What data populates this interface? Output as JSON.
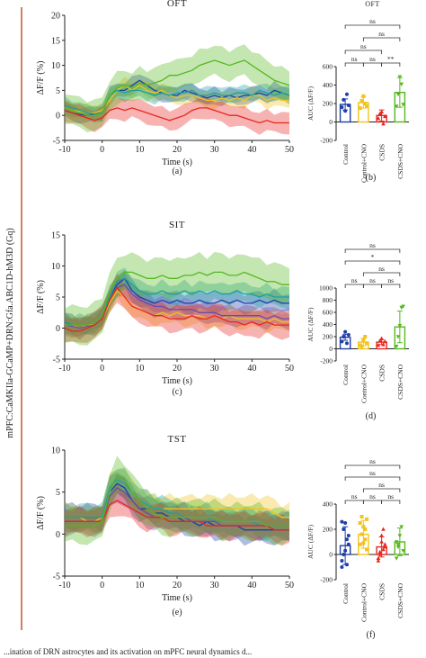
{
  "figure": {
    "side_label": "mPFC:CaMKIIa-GCaMP+DRN:Gfa.ABC1D-hM3D (Gq)",
    "caption_fragment": "...ination of DRN astrocytes and its activation on mPFC neural dynamics d..."
  },
  "colors": {
    "control": "#1f3fa8",
    "control_cno": "#f2c31b",
    "csds": "#e8261f",
    "csds_cno": "#56b81f",
    "teal": "#1aa0a0",
    "purple": "#6a4caf"
  },
  "chart_data": [
    {
      "id": "a",
      "letter": "(a)",
      "type": "line",
      "title": "OFT",
      "xlabel": "Time (s)",
      "ylabel": "ΔF/F (%)",
      "xlim": [
        -10,
        50
      ],
      "ylim": [
        -5,
        20
      ],
      "xticks": [
        -10,
        0,
        10,
        20,
        30,
        40,
        50
      ],
      "yticks": [
        -5,
        0,
        5,
        10,
        15,
        20
      ],
      "x": [
        -10,
        -8,
        -6,
        -4,
        -2,
        0,
        2,
        4,
        6,
        8,
        10,
        12,
        14,
        16,
        18,
        20,
        22,
        24,
        26,
        28,
        30,
        32,
        34,
        36,
        38,
        40,
        42,
        44,
        46,
        48,
        50
      ],
      "series": [
        {
          "key": "control",
          "values": [
            1,
            0.5,
            0.2,
            0,
            0.3,
            0.5,
            4,
            5,
            5,
            6,
            7,
            6,
            5,
            4.5,
            4,
            4,
            5,
            4.5,
            4,
            3.5,
            4,
            3.5,
            4,
            3.5,
            4,
            4,
            4.5,
            4,
            5,
            4.5,
            4
          ],
          "err": 1.5
        },
        {
          "key": "control_cno",
          "values": [
            1.5,
            1,
            0.8,
            0.5,
            0.5,
            1,
            3,
            5,
            6,
            5,
            6,
            5,
            4.5,
            5,
            4,
            3.5,
            4,
            4,
            3.5,
            3,
            3,
            3.5,
            3,
            3.5,
            3,
            4,
            4,
            3,
            3.5,
            3,
            3
          ],
          "err": 1.5
        },
        {
          "key": "teal",
          "values": [
            2,
            1.5,
            1,
            0.5,
            0.3,
            0.5,
            4,
            5,
            4.5,
            5,
            5,
            4.5,
            4,
            4.5,
            4,
            4.5,
            4.5,
            5,
            4,
            4,
            4.5,
            4,
            4,
            4.5,
            4.5,
            4,
            5,
            4.5,
            4,
            4.5,
            4
          ],
          "err": 1.5
        },
        {
          "key": "csds",
          "values": [
            1,
            0.5,
            0,
            -0.5,
            -1,
            -0.5,
            1,
            1.5,
            1,
            1.5,
            1,
            0.5,
            0,
            -0.5,
            -1,
            -0.5,
            0,
            1,
            1.5,
            1.5,
            1,
            0.5,
            0,
            0,
            -0.5,
            -1,
            -1.5,
            -1,
            -1.5,
            -1.5,
            -1.5
          ],
          "err": 2
        },
        {
          "key": "csds_cno",
          "values": [
            1.5,
            1,
            0.5,
            0,
            0,
            0.5,
            4,
            5.5,
            6,
            5.5,
            6.5,
            6,
            6.5,
            7,
            8,
            8,
            8.5,
            9,
            10,
            10.5,
            11,
            10.5,
            10,
            10.5,
            11,
            10,
            9,
            8,
            7,
            6.5,
            6
          ],
          "err": 3
        }
      ]
    },
    {
      "id": "c",
      "letter": "(c)",
      "type": "line",
      "title": "SIT",
      "xlabel": "Time (s)",
      "ylabel": "ΔF/F (%)",
      "xlim": [
        -10,
        50
      ],
      "ylim": [
        -5,
        15
      ],
      "xticks": [
        -10,
        0,
        10,
        20,
        30,
        40,
        50
      ],
      "yticks": [
        -5,
        0,
        5,
        10,
        15
      ],
      "x": [
        -10,
        -8,
        -6,
        -4,
        -2,
        0,
        2,
        4,
        6,
        8,
        10,
        12,
        14,
        16,
        18,
        20,
        22,
        24,
        26,
        28,
        30,
        32,
        34,
        36,
        38,
        40,
        42,
        44,
        46,
        48,
        50
      ],
      "series": [
        {
          "key": "control",
          "values": [
            1,
            0.5,
            0,
            0.5,
            1,
            2,
            5,
            7,
            8,
            6,
            5,
            4.5,
            4,
            4.5,
            4,
            4.5,
            4,
            4,
            4.5,
            4,
            4,
            4.5,
            4,
            4.5,
            4,
            4,
            4.5,
            4,
            4.5,
            4,
            4
          ],
          "err": 1.5
        },
        {
          "key": "control_cno",
          "values": [
            0.5,
            0.5,
            0,
            0.5,
            0.5,
            1.5,
            4,
            6,
            5,
            3.5,
            3,
            2.5,
            2,
            2.5,
            2,
            2.5,
            2,
            2,
            2,
            1.5,
            2,
            1.5,
            2,
            1.5,
            1.5,
            1.5,
            1.5,
            1,
            1.5,
            1,
            1
          ],
          "err": 1.5
        },
        {
          "key": "purple",
          "values": [
            0.5,
            0.3,
            0,
            0.3,
            0.5,
            1.5,
            4.5,
            6.5,
            7,
            5.5,
            4.5,
            4,
            3.5,
            3.5,
            3,
            3,
            3,
            3,
            2.5,
            2.5,
            2.5,
            2,
            2,
            2,
            2,
            2,
            2,
            1.5,
            2,
            1.5,
            1.5
          ],
          "err": 1.5
        },
        {
          "key": "teal",
          "values": [
            1,
            0.5,
            0.5,
            0.5,
            1,
            2,
            5,
            7.5,
            8,
            7,
            6,
            5.5,
            5.5,
            6,
            5.5,
            5.5,
            6,
            5.5,
            6,
            5.5,
            6,
            5.5,
            5.5,
            6,
            5.5,
            5.5,
            5,
            5.5,
            5,
            5,
            5
          ],
          "err": 1.5
        },
        {
          "key": "csds",
          "values": [
            0,
            -0.5,
            -0.5,
            0,
            0.5,
            1.5,
            4.5,
            6.5,
            5,
            3.5,
            3,
            2.5,
            2,
            2,
            1.5,
            1.5,
            1.5,
            2,
            1.5,
            1.5,
            2,
            1.5,
            1,
            1,
            0.5,
            1,
            0.5,
            1,
            0.5,
            0.5,
            0.5
          ],
          "err": 2
        },
        {
          "key": "csds_cno",
          "values": [
            0.5,
            0.5,
            0.5,
            0.5,
            1,
            2,
            6,
            8,
            9,
            9,
            8.5,
            8,
            8,
            8.5,
            8,
            8,
            8.5,
            8.5,
            9,
            8.5,
            9,
            9,
            8.5,
            8.5,
            9,
            8.5,
            8,
            7.5,
            7.5,
            7,
            7
          ],
          "err": 3
        }
      ]
    },
    {
      "id": "e",
      "letter": "(e)",
      "type": "line",
      "title": "TST",
      "xlabel": "Time (s)",
      "ylabel": "ΔF/F (%)",
      "xlim": [
        -10,
        50
      ],
      "ylim": [
        -5,
        10
      ],
      "xticks": [
        -10,
        0,
        10,
        20,
        30,
        40,
        50
      ],
      "yticks": [
        -5,
        0,
        5,
        10
      ],
      "x": [
        -10,
        -8,
        -6,
        -4,
        -2,
        0,
        2,
        4,
        6,
        8,
        10,
        12,
        14,
        16,
        18,
        20,
        22,
        24,
        26,
        28,
        30,
        32,
        34,
        36,
        38,
        40,
        42,
        44,
        46,
        48,
        50
      ],
      "series": [
        {
          "key": "control",
          "values": [
            2,
            2,
            2,
            2,
            2,
            2,
            5,
            6,
            5.5,
            4,
            3,
            3,
            2.5,
            2.5,
            2,
            2,
            1.5,
            1.5,
            1,
            1.5,
            1,
            1,
            1,
            1,
            0.5,
            0.5,
            0.5,
            0.5,
            0.5,
            0.5,
            0.5
          ],
          "err": 1.5
        },
        {
          "key": "control_cno",
          "values": [
            2,
            2,
            2,
            1.5,
            1.5,
            2,
            5.5,
            6.5,
            6,
            5,
            4,
            3.5,
            3,
            3,
            3,
            3,
            3,
            3,
            3,
            3,
            3,
            3,
            3,
            3,
            3,
            3,
            3,
            3,
            2.5,
            2,
            2
          ],
          "err": 1.5
        },
        {
          "key": "teal",
          "values": [
            2,
            2,
            2,
            2,
            2,
            2,
            5.5,
            6.5,
            6,
            5,
            4,
            3.5,
            3,
            3,
            2.5,
            2.5,
            2,
            2,
            2,
            2,
            1.5,
            1.5,
            1.5,
            1.5,
            1.5,
            1.5,
            1,
            1,
            1,
            1,
            1
          ],
          "err": 1.5
        },
        {
          "key": "purple",
          "values": [
            1.5,
            1.5,
            1.5,
            1.5,
            1.5,
            1.5,
            4.5,
            5.5,
            5,
            4,
            3,
            2.5,
            2,
            2,
            2,
            2,
            2,
            1.5,
            1.5,
            1.5,
            1.5,
            1,
            1,
            1,
            1,
            1,
            1,
            1,
            1,
            1,
            1
          ],
          "err": 1.5
        },
        {
          "key": "csds",
          "values": [
            1.5,
            1.5,
            1.5,
            1.5,
            1.5,
            1.5,
            3.5,
            4,
            3.5,
            3,
            2.5,
            2,
            2,
            2,
            1.5,
            1.5,
            1.5,
            1.5,
            1.5,
            1,
            1,
            1,
            1,
            1,
            1,
            1,
            1,
            1,
            0.5,
            0.5,
            0.5
          ],
          "err": 1.5
        },
        {
          "key": "csds_cno",
          "values": [
            1,
            1,
            1,
            1,
            1,
            1.5,
            5,
            7,
            6.5,
            5,
            4,
            3,
            2.5,
            2,
            2,
            2,
            2,
            2,
            2,
            2,
            2,
            1.5,
            1.5,
            1.5,
            1.5,
            1.5,
            1.5,
            1,
            1,
            1,
            1
          ],
          "err": 2
        }
      ]
    },
    {
      "id": "b",
      "letter": "(b)",
      "type": "bar",
      "title": "OFT",
      "ylabel": "AUC (ΔF/F)",
      "ylim": [
        -200,
        600
      ],
      "yticks": [
        -200,
        0,
        200,
        400,
        600
      ],
      "categories": [
        "Control",
        "Control+CNO",
        "CSDS",
        "CSDS+CNO"
      ],
      "values": [
        190,
        210,
        70,
        320
      ],
      "errors": [
        60,
        60,
        60,
        160
      ],
      "points": [
        [
          160,
          240,
          120,
          300,
          180
        ],
        [
          150,
          230,
          280,
          200,
          170
        ],
        [
          40,
          90,
          110,
          -20,
          60
        ],
        [
          170,
          300,
          490,
          410,
          190
        ]
      ],
      "brackets": [
        {
          "from": 0,
          "to": 1,
          "level": 1,
          "label": "ns"
        },
        {
          "from": 1,
          "to": 2,
          "level": 1,
          "label": "ns"
        },
        {
          "from": 2,
          "to": 3,
          "level": 1,
          "label": "**"
        },
        {
          "from": 0,
          "to": 2,
          "level": 2,
          "label": "ns"
        },
        {
          "from": 1,
          "to": 3,
          "level": 3,
          "label": "ns"
        },
        {
          "from": 0,
          "to": 3,
          "level": 4,
          "label": "ns"
        }
      ]
    },
    {
      "id": "d",
      "letter": "(d)",
      "type": "bar",
      "title": "",
      "ylabel": "AUC (ΔF/F)",
      "ylim": [
        -200,
        1000
      ],
      "yticks": [
        -200,
        0,
        200,
        400,
        600,
        800,
        1000
      ],
      "categories": [
        "Control",
        "Control+CNO",
        "CSDS",
        "CSDS+CNO"
      ],
      "values": [
        190,
        110,
        110,
        360
      ],
      "errors": [
        50,
        60,
        40,
        260
      ],
      "points": [
        [
          120,
          200,
          280,
          90,
          230
        ],
        [
          60,
          40,
          150,
          200,
          90
        ],
        [
          60,
          130,
          170,
          70,
          120
        ],
        [
          40,
          200,
          380,
          680,
          700
        ]
      ],
      "brackets": [
        {
          "from": 0,
          "to": 1,
          "level": 1,
          "label": "ns"
        },
        {
          "from": 1,
          "to": 2,
          "level": 1,
          "label": "ns"
        },
        {
          "from": 2,
          "to": 3,
          "level": 1,
          "label": "ns"
        },
        {
          "from": 1,
          "to": 3,
          "level": 2,
          "label": "ns"
        },
        {
          "from": 0,
          "to": 3,
          "level": 3,
          "label": "*"
        },
        {
          "from": 0,
          "to": 3,
          "level": 4,
          "label": "ns"
        }
      ]
    },
    {
      "id": "f",
      "letter": "(f)",
      "type": "bar",
      "title": "",
      "ylabel": "AUC (ΔF/F)",
      "ylim": [
        -200,
        400
      ],
      "yticks": [
        -200,
        0,
        200,
        400
      ],
      "categories": [
        "Control",
        "Control+CNO",
        "CSDS",
        "CSDS+CNO"
      ],
      "values": [
        70,
        160,
        60,
        100
      ],
      "errors": [
        150,
        110,
        80,
        110
      ],
      "points": [
        [
          -100,
          0,
          250,
          120,
          80,
          -50,
          200,
          30,
          -80,
          150,
          260
        ],
        [
          80,
          300,
          220,
          120,
          40,
          250,
          160,
          90,
          200,
          280
        ],
        [
          -50,
          0,
          100,
          200,
          60,
          -30,
          20,
          150,
          40,
          80
        ],
        [
          -30,
          80,
          150,
          220,
          30,
          100,
          60
        ]
      ],
      "brackets": [
        {
          "from": 0,
          "to": 1,
          "level": 1,
          "label": "ns"
        },
        {
          "from": 1,
          "to": 2,
          "level": 1,
          "label": "ns"
        },
        {
          "from": 2,
          "to": 3,
          "level": 1,
          "label": "ns"
        },
        {
          "from": 1,
          "to": 3,
          "level": 2,
          "label": "ns"
        },
        {
          "from": 0,
          "to": 3,
          "level": 3,
          "label": "ns"
        },
        {
          "from": 0,
          "to": 3,
          "level": 4,
          "label": "ns"
        }
      ]
    }
  ]
}
